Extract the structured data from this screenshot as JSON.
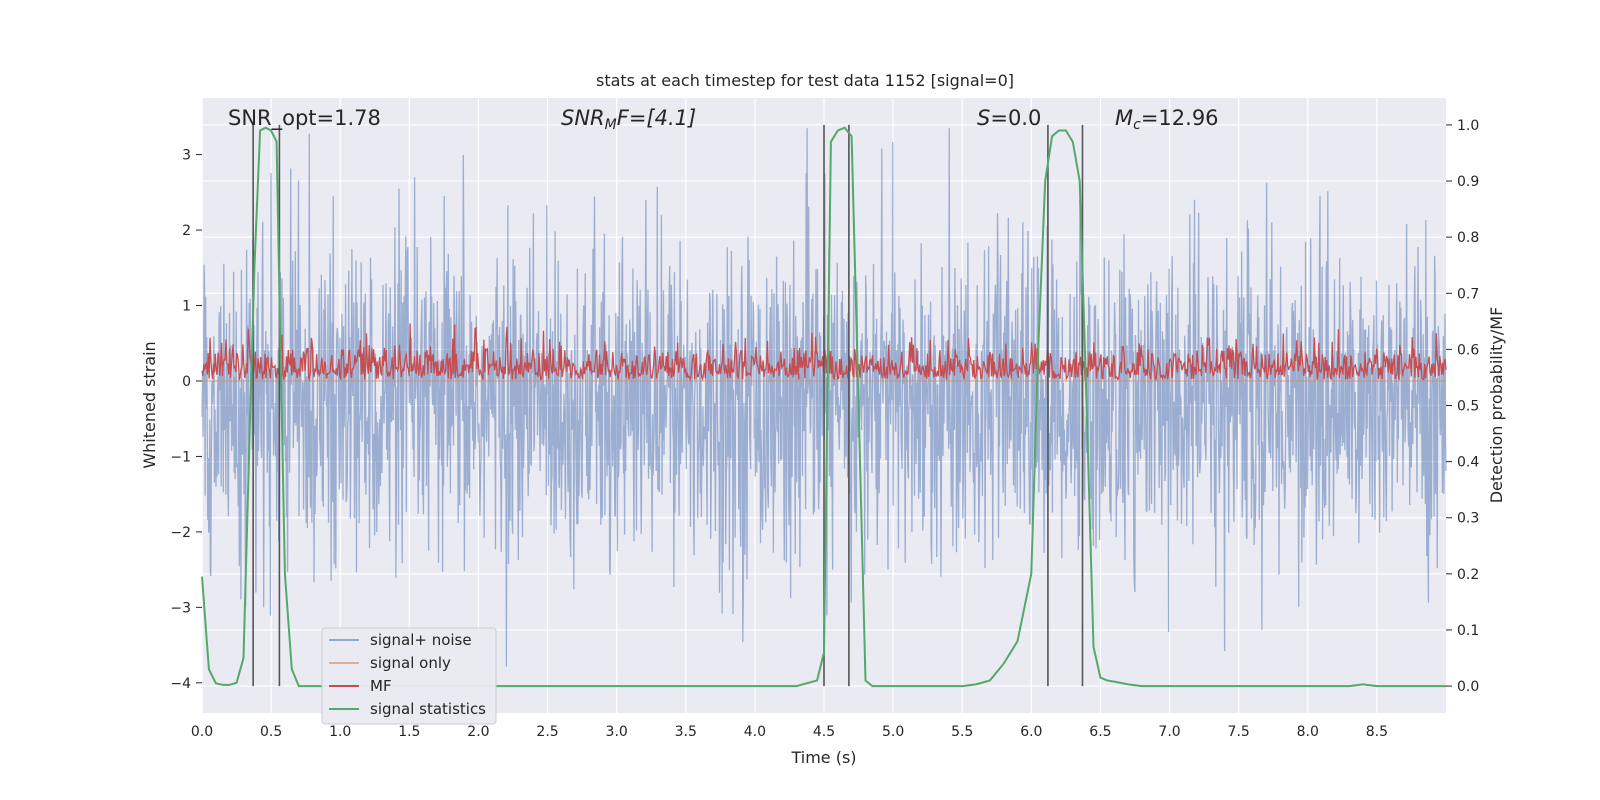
{
  "chart_data": {
    "type": "line",
    "title": "stats at each timestep for test data 1152 [signal=0]",
    "xlabel": "Time (s)",
    "ylabel": "Whitened strain",
    "y2label": "Detection probability/MF",
    "xlim": [
      0,
      9.0
    ],
    "ylim": [
      -4.4,
      3.75
    ],
    "y2lim": [
      -0.048,
      1.048
    ],
    "grid": true,
    "legend_position": "lower-left",
    "x_ticks": [
      "0.0",
      "0.5",
      "1.0",
      "1.5",
      "2.0",
      "2.5",
      "3.0",
      "3.5",
      "4.0",
      "4.5",
      "5.0",
      "5.5",
      "6.0",
      "6.5",
      "7.0",
      "7.5",
      "8.0",
      "8.5"
    ],
    "y_ticks": [
      "3",
      "2",
      "1",
      "0",
      "−1",
      "−2",
      "−3",
      "−4"
    ],
    "y2_ticks": [
      "1.0",
      "0.9",
      "0.8",
      "0.7",
      "0.6",
      "0.5",
      "0.4",
      "0.3",
      "0.2",
      "0.1",
      "0.0"
    ],
    "annotations": {
      "snr_opt": "SNR_opt=1.78",
      "snr_mf_sym": "SNR",
      "snr_mf_sub": "M",
      "snr_mf_rest": "F=[4.1]",
      "s_sym": "S",
      "s_rest": "=0.0",
      "mc_sym": "M",
      "mc_sub": "c",
      "mc_rest": "=12.96"
    },
    "series": [
      {
        "name": "signal+ noise",
        "color": "#4c72b0",
        "opacity": 0.5,
        "axis": "left",
        "description": "whitened strain noise, values roughly within [-3.9, 3.35]",
        "envelope": [
          -3.9,
          3.35
        ]
      },
      {
        "name": "signal only",
        "color": "#dd8452",
        "axis": "left",
        "values_note": "flat near 0",
        "x": [
          0,
          9.0
        ],
        "y": [
          0.0,
          0.0
        ]
      },
      {
        "name": "MF",
        "color": "#c44e52",
        "axis": "right",
        "base": 0.55,
        "envelope": [
          0.545,
          0.65
        ]
      },
      {
        "name": "signal statistics",
        "color": "#55a868",
        "axis": "right",
        "x": [
          0.0,
          0.05,
          0.1,
          0.15,
          0.2,
          0.25,
          0.3,
          0.35,
          0.38,
          0.42,
          0.46,
          0.5,
          0.54,
          0.56,
          0.6,
          0.65,
          0.7,
          0.8,
          1.0,
          2.0,
          3.0,
          4.0,
          4.3,
          4.45,
          4.5,
          4.55,
          4.6,
          4.65,
          4.7,
          4.75,
          4.8,
          4.85,
          4.9,
          5.0,
          5.5,
          5.6,
          5.7,
          5.8,
          5.9,
          6.0,
          6.05,
          6.1,
          6.15,
          6.2,
          6.25,
          6.3,
          6.35,
          6.4,
          6.45,
          6.5,
          6.55,
          6.6,
          6.7,
          6.8,
          7.0,
          8.0,
          8.3,
          8.4,
          8.5,
          9.0
        ],
        "y": [
          0.195,
          0.03,
          0.005,
          0.002,
          0.002,
          0.006,
          0.05,
          0.5,
          0.75,
          0.99,
          0.995,
          0.99,
          0.97,
          0.7,
          0.2,
          0.03,
          0.0,
          0.0,
          0.0,
          0.0,
          0.0,
          0.0,
          0.0,
          0.01,
          0.06,
          0.97,
          0.99,
          0.995,
          0.98,
          0.5,
          0.01,
          0.0,
          0.0,
          0.0,
          0.0,
          0.003,
          0.01,
          0.04,
          0.08,
          0.2,
          0.6,
          0.9,
          0.98,
          0.99,
          0.99,
          0.97,
          0.9,
          0.5,
          0.07,
          0.015,
          0.01,
          0.008,
          0.003,
          0.0,
          0.0,
          0.0,
          0.0,
          0.003,
          0.0,
          0.0
        ]
      }
    ],
    "vlines": [
      0.37,
      0.56,
      4.5,
      4.68,
      6.12,
      6.37
    ]
  }
}
